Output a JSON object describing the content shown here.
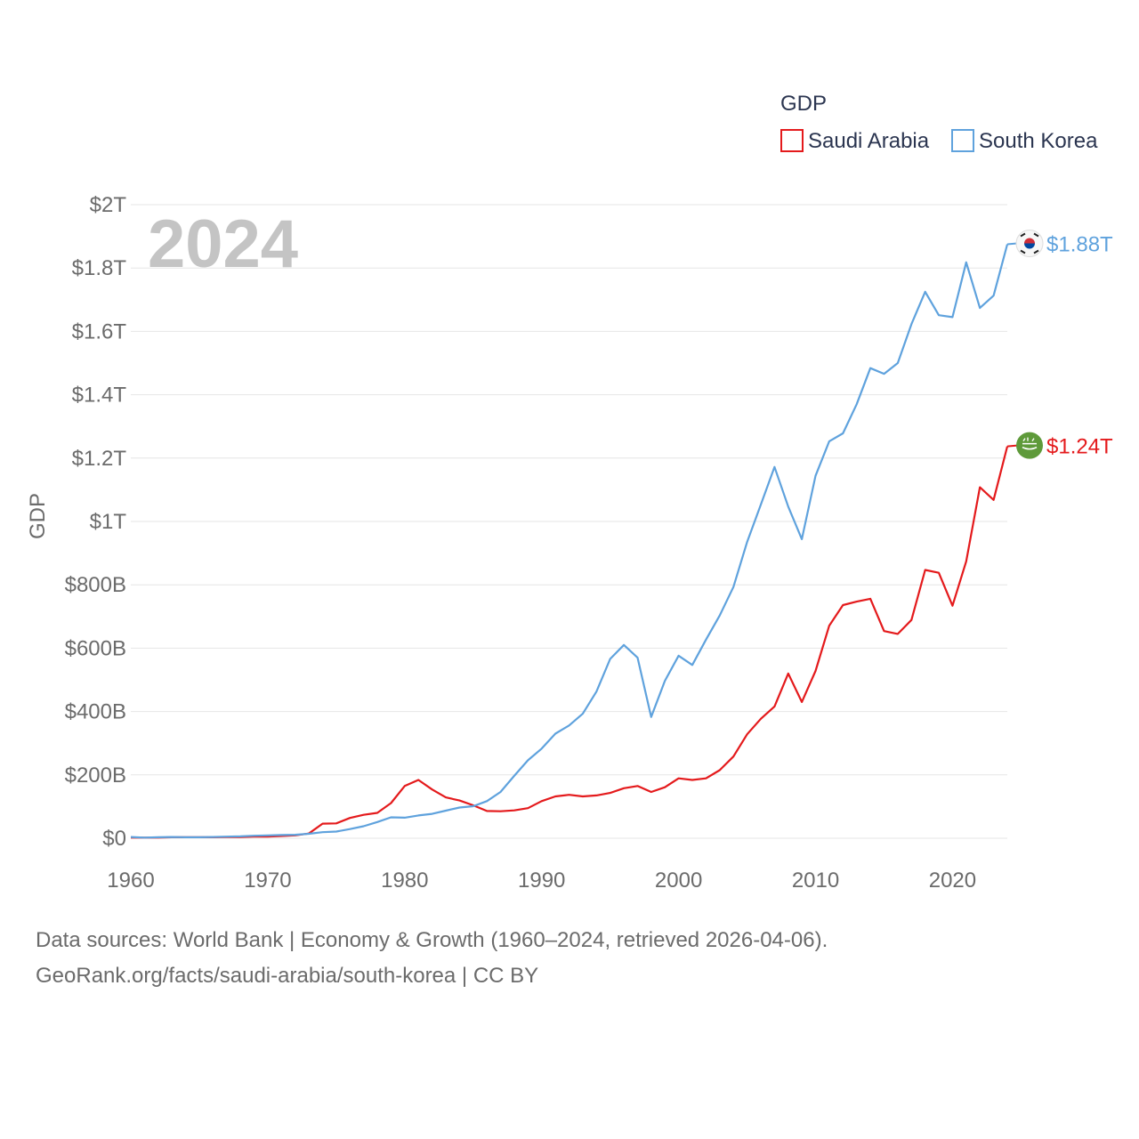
{
  "chart_data": {
    "type": "line",
    "legend_title": "GDP",
    "ylabel": "GDP",
    "xlabel": "",
    "current_year": "2024",
    "x": [
      1960,
      1961,
      1962,
      1963,
      1964,
      1965,
      1966,
      1967,
      1968,
      1969,
      1970,
      1971,
      1972,
      1973,
      1974,
      1975,
      1976,
      1977,
      1978,
      1979,
      1980,
      1981,
      1982,
      1983,
      1984,
      1985,
      1986,
      1987,
      1988,
      1989,
      1990,
      1991,
      1992,
      1993,
      1994,
      1995,
      1996,
      1997,
      1998,
      1999,
      2000,
      2001,
      2002,
      2003,
      2004,
      2005,
      2006,
      2007,
      2008,
      2009,
      2010,
      2011,
      2012,
      2013,
      2014,
      2015,
      2016,
      2017,
      2018,
      2019,
      2020,
      2021,
      2022,
      2023,
      2024
    ],
    "xlim": [
      1960,
      2024
    ],
    "ylim": [
      0,
      2000
    ],
    "y_unit": "billions USD",
    "x_ticks": [
      "1960",
      "1970",
      "1980",
      "1990",
      "2000",
      "2010",
      "2020"
    ],
    "y_ticks": [
      {
        "value": 0,
        "label": "$0"
      },
      {
        "value": 200,
        "label": "$200B"
      },
      {
        "value": 400,
        "label": "$400B"
      },
      {
        "value": 600,
        "label": "$600B"
      },
      {
        "value": 800,
        "label": "$800B"
      },
      {
        "value": 1000,
        "label": "$1T"
      },
      {
        "value": 1200,
        "label": "$1.2T"
      },
      {
        "value": 1400,
        "label": "$1.4T"
      },
      {
        "value": 1600,
        "label": "$1.6T"
      },
      {
        "value": 1800,
        "label": "$1.8T"
      },
      {
        "value": 2000,
        "label": "$2T"
      }
    ],
    "series": [
      {
        "name": "Saudi Arabia",
        "color": "#e41a1c",
        "end_label": "$1.24T",
        "marker_icon": "saudi-arabia-flag-icon",
        "values": [
          2,
          2,
          2,
          3,
          3,
          3,
          3,
          4,
          4,
          5,
          5,
          7,
          9,
          15,
          46,
          47,
          64,
          74,
          80,
          111,
          165,
          184,
          154,
          129,
          119,
          104,
          86,
          85,
          88,
          95,
          117,
          132,
          137,
          132,
          135,
          143,
          158,
          165,
          146,
          161,
          189,
          184,
          189,
          215,
          258,
          328,
          377,
          416,
          520,
          430,
          528,
          671,
          736,
          747,
          756,
          654,
          645,
          689,
          847,
          838,
          734,
          874,
          1108,
          1068,
          1237
        ]
      },
      {
        "name": "South Korea",
        "color": "#5fa2dd",
        "end_label": "$1.88T",
        "marker_icon": "south-korea-flag-icon",
        "values": [
          4,
          2,
          3,
          4,
          3,
          3,
          4,
          5,
          6,
          8,
          9,
          10,
          11,
          14,
          19,
          21,
          29,
          38,
          51,
          66,
          65,
          72,
          77,
          87,
          97,
          101,
          117,
          146,
          197,
          246,
          283,
          330,
          356,
          393,
          463,
          566,
          610,
          570,
          383,
          497,
          576,
          547,
          627,
          703,
          793,
          935,
          1053,
          1172,
          1047,
          944,
          1144,
          1253,
          1278,
          1370,
          1484,
          1466,
          1500,
          1623,
          1725,
          1651,
          1645,
          1818,
          1674,
          1713,
          1875
        ]
      }
    ]
  },
  "source": {
    "line1": "Data sources: World Bank | Economy & Growth (1960–2024, retrieved 2026-04-06).",
    "line2": "GeoRank.org/facts/saudi-arabia/south-korea | CC BY"
  }
}
